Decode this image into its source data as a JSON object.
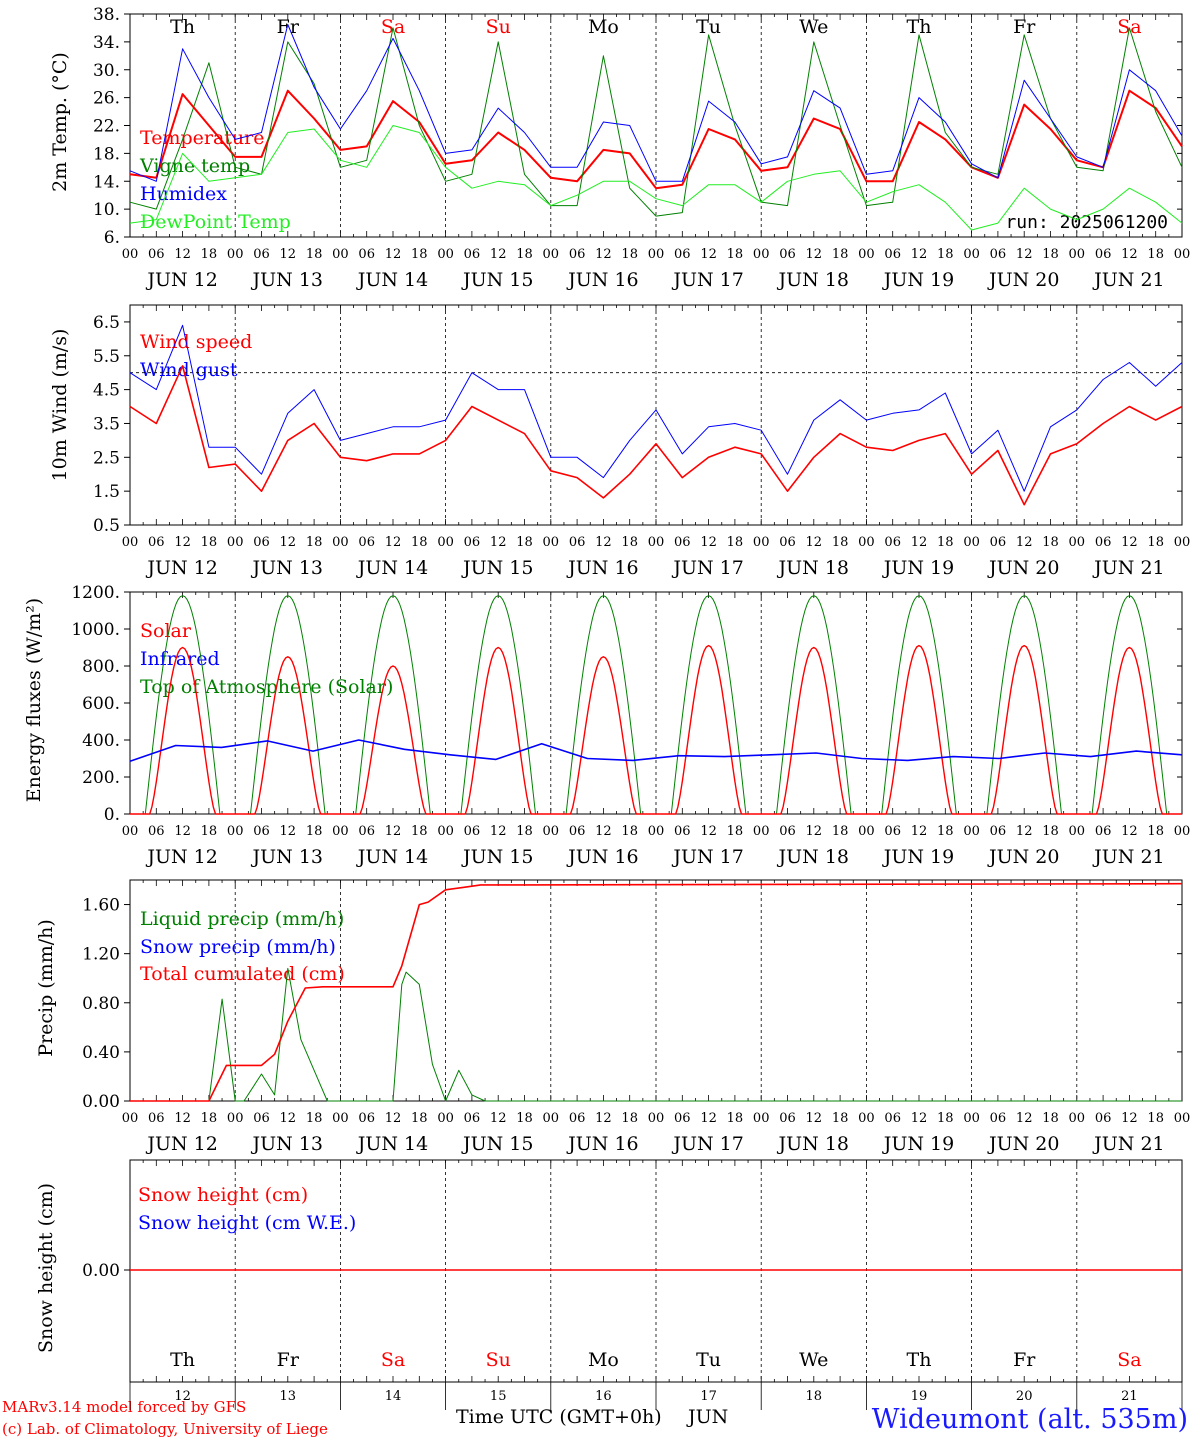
{
  "meta": {
    "model": "MARv3.14 model forced by GFS",
    "copyright": "(c) Lab. of Climatology, University of Liege",
    "xlabel": "Time UTC (GMT+0h)",
    "month": "JUN",
    "station": "Wideumont (alt. 535m)",
    "run": "run: 2025061200"
  },
  "days": [
    {
      "date": "JUN 12",
      "num": "12",
      "dow": "Th",
      "weekend": false
    },
    {
      "date": "JUN 13",
      "num": "13",
      "dow": "Fr",
      "weekend": false
    },
    {
      "date": "JUN 14",
      "num": "14",
      "dow": "Sa",
      "weekend": true
    },
    {
      "date": "JUN 15",
      "num": "15",
      "dow": "Su",
      "weekend": true
    },
    {
      "date": "JUN 16",
      "num": "16",
      "dow": "Mo",
      "weekend": false
    },
    {
      "date": "JUN 17",
      "num": "17",
      "dow": "Tu",
      "weekend": false
    },
    {
      "date": "JUN 18",
      "num": "18",
      "dow": "We",
      "weekend": false
    },
    {
      "date": "JUN 19",
      "num": "19",
      "dow": "Th",
      "weekend": false
    },
    {
      "date": "JUN 20",
      "num": "20",
      "dow": "Fr",
      "weekend": false
    },
    {
      "date": "JUN 21",
      "num": "21",
      "dow": "Sa",
      "weekend": true
    }
  ],
  "hour_ticks": [
    "00",
    "06",
    "12",
    "18"
  ],
  "colors": {
    "red": "#ff0000",
    "green": "#008000",
    "blue": "#0000ff",
    "lightgreen": "#22ee22",
    "weekend": "#ff0000",
    "axis": "#000000"
  },
  "chart_data": [
    {
      "id": "temp",
      "type": "line",
      "ylabel": "2m Temp. (°C)",
      "ylim": [
        6,
        38
      ],
      "yticks": [
        "38.",
        "34.",
        "30.",
        "26.",
        "22.",
        "18.",
        "14.",
        "10.",
        "6."
      ],
      "ytick_values": [
        38,
        34,
        30,
        26,
        22,
        18,
        14,
        10,
        6
      ],
      "x_unit": "hours since JUN 12 00 UTC",
      "x": [
        0,
        6,
        12,
        18,
        24,
        30,
        36,
        42,
        48,
        54,
        60,
        66,
        72,
        78,
        84,
        90,
        96,
        102,
        108,
        114,
        120,
        126,
        132,
        138,
        144,
        150,
        156,
        162,
        168,
        174,
        180,
        186,
        192,
        198,
        204,
        210,
        216,
        222,
        228,
        234,
        240
      ],
      "series": [
        {
          "name": "Temperature",
          "color": "#ff0000",
          "values": [
            15.0,
            14.5,
            26.5,
            22.0,
            17.5,
            17.5,
            27.0,
            23.0,
            18.5,
            19.0,
            25.5,
            22.5,
            16.5,
            17.0,
            21.0,
            18.5,
            14.5,
            14.0,
            18.5,
            18.0,
            13.0,
            13.5,
            21.5,
            20.0,
            15.5,
            16.0,
            23.0,
            21.5,
            14.0,
            14.0,
            22.5,
            20.0,
            16.0,
            14.5,
            25.0,
            21.5,
            17.0,
            16.0,
            27.0,
            24.5,
            19.0
          ]
        },
        {
          "name": "Vigne temp",
          "color": "#008000",
          "values": [
            11.0,
            10.0,
            20.0,
            31.0,
            16.0,
            15.0,
            34.0,
            28.0,
            16.0,
            17.0,
            36.0,
            22.0,
            14.0,
            15.0,
            34.0,
            15.0,
            10.5,
            10.5,
            32.0,
            13.0,
            9.0,
            9.5,
            35.0,
            22.0,
            11.0,
            10.5,
            34.0,
            22.0,
            10.5,
            11.0,
            35.0,
            21.0,
            16.0,
            15.0,
            35.0,
            23.0,
            16.0,
            15.5,
            36.0,
            24.0,
            16.0
          ]
        },
        {
          "name": "Humidex",
          "color": "#0000ff",
          "values": [
            15.5,
            14.0,
            33.0,
            26.0,
            20.0,
            21.0,
            36.5,
            27.5,
            21.5,
            27.0,
            34.5,
            27.0,
            18.0,
            18.5,
            24.5,
            21.0,
            16.0,
            16.0,
            22.5,
            22.0,
            14.0,
            14.0,
            25.5,
            22.5,
            16.5,
            17.5,
            27.0,
            24.5,
            15.0,
            15.5,
            26.0,
            22.5,
            16.5,
            14.5,
            28.5,
            23.0,
            17.5,
            16.0,
            30.0,
            27.0,
            20.5
          ]
        },
        {
          "name": "DewPoint Temp",
          "color": "#22ee22",
          "values": [
            8.0,
            8.5,
            18.0,
            14.0,
            14.5,
            15.0,
            21.0,
            21.5,
            17.0,
            16.0,
            22.0,
            21.0,
            16.0,
            13.0,
            14.0,
            13.5,
            10.5,
            12.0,
            14.0,
            14.0,
            11.5,
            10.5,
            13.5,
            13.5,
            11.0,
            14.0,
            15.0,
            15.5,
            11.0,
            12.5,
            13.5,
            11.0,
            7.0,
            8.0,
            13.0,
            10.0,
            8.5,
            10.0,
            13.0,
            11.0,
            8.0
          ]
        }
      ]
    },
    {
      "id": "wind",
      "type": "line",
      "ylabel": "10m Wind (m/s)",
      "ylim": [
        0.5,
        7.0
      ],
      "yticks": [
        "6.5",
        "5.5",
        "4.5",
        "3.5",
        "2.5",
        "1.5",
        "0.5"
      ],
      "ytick_values": [
        6.5,
        5.5,
        4.5,
        3.5,
        2.5,
        1.5,
        0.5
      ],
      "threshold": 5.0,
      "x_unit": "hours since JUN 12 00 UTC",
      "x": [
        0,
        6,
        12,
        18,
        24,
        30,
        36,
        42,
        48,
        54,
        60,
        66,
        72,
        78,
        84,
        90,
        96,
        102,
        108,
        114,
        120,
        126,
        132,
        138,
        144,
        150,
        156,
        162,
        168,
        174,
        180,
        186,
        192,
        198,
        204,
        210,
        216,
        222,
        228,
        234,
        240
      ],
      "series": [
        {
          "name": "Wind speed",
          "color": "#ff0000",
          "values": [
            4.0,
            3.5,
            5.2,
            2.2,
            2.3,
            1.5,
            3.0,
            3.5,
            2.5,
            2.4,
            2.6,
            2.6,
            3.0,
            4.0,
            3.6,
            3.2,
            2.1,
            1.9,
            1.3,
            2.0,
            2.9,
            1.9,
            2.5,
            2.8,
            2.6,
            1.5,
            2.5,
            3.2,
            2.8,
            2.7,
            3.0,
            3.2,
            2.0,
            2.7,
            1.1,
            2.6,
            2.9,
            3.5,
            4.0,
            3.6,
            4.0
          ]
        },
        {
          "name": "Wind gust",
          "color": "#0000ff",
          "values": [
            5.0,
            4.5,
            6.4,
            2.8,
            2.8,
            2.0,
            3.8,
            4.5,
            3.0,
            3.2,
            3.4,
            3.4,
            3.6,
            5.0,
            4.5,
            4.5,
            2.5,
            2.5,
            1.9,
            3.0,
            3.9,
            2.6,
            3.4,
            3.5,
            3.3,
            2.0,
            3.6,
            4.2,
            3.6,
            3.8,
            3.9,
            4.4,
            2.6,
            3.3,
            1.5,
            3.4,
            3.9,
            4.8,
            5.3,
            4.6,
            5.3
          ]
        }
      ]
    },
    {
      "id": "flux",
      "type": "line",
      "ylabel": "Energy fluxes (W/m²)",
      "ylim": [
        0,
        1200
      ],
      "yticks": [
        "1200.",
        "1000.",
        "800.",
        "600.",
        "400.",
        "200.",
        "0."
      ],
      "ytick_values": [
        1200,
        1000,
        800,
        600,
        400,
        200,
        0
      ],
      "daily_peaks_solar": [
        900,
        850,
        800,
        900,
        850,
        910,
        900,
        910,
        910,
        900
      ],
      "toa_peak": 1180,
      "infrared_values": [
        285,
        370,
        360,
        395,
        340,
        400,
        350,
        320,
        295,
        380,
        300,
        290,
        315,
        310,
        320,
        330,
        300,
        290,
        310,
        300,
        330,
        310,
        340,
        320
      ],
      "series": [
        {
          "name": "Solar",
          "color": "#ff0000"
        },
        {
          "name": "Infrared",
          "color": "#0000ff"
        },
        {
          "name": "Top of Atmosphere (Solar)",
          "color": "#008000"
        }
      ]
    },
    {
      "id": "precip",
      "type": "line",
      "ylabel": "Precip (mm/h)",
      "ylim": [
        0,
        1.8
      ],
      "yticks": [
        "1.60",
        "1.20",
        "0.80",
        "0.40",
        "0.00"
      ],
      "ytick_values": [
        1.6,
        1.2,
        0.8,
        0.4,
        0.0
      ],
      "x_unit": "hours since JUN 12 00 UTC",
      "liquid_x": [
        0,
        18,
        21,
        24,
        26,
        30,
        33,
        36,
        39,
        42,
        45,
        48,
        51,
        60,
        62,
        63,
        66,
        69,
        72,
        75,
        78,
        81,
        84,
        90,
        240
      ],
      "liquid_values": [
        0,
        0,
        0.83,
        0,
        0,
        0.22,
        0.05,
        1.08,
        0.5,
        0.25,
        0,
        0,
        0,
        0,
        0.95,
        1.05,
        0.95,
        0.3,
        0,
        0.25,
        0.05,
        0,
        0,
        0,
        0
      ],
      "total_x": [
        0,
        18,
        22,
        24,
        30,
        33,
        36,
        40,
        44,
        60,
        62,
        66,
        68,
        72,
        76,
        80,
        90,
        240
      ],
      "total_values": [
        0,
        0,
        0.29,
        0.29,
        0.29,
        0.38,
        0.65,
        0.92,
        0.93,
        0.93,
        1.1,
        1.6,
        1.62,
        1.72,
        1.74,
        1.76,
        1.76,
        1.77
      ],
      "series": [
        {
          "name": "Liquid precip (mm/h)",
          "color": "#008000"
        },
        {
          "name": "Snow precip (mm/h)",
          "color": "#0000ff"
        },
        {
          "name": "Total cumulated (cm)",
          "color": "#ff0000"
        }
      ]
    },
    {
      "id": "snow",
      "type": "line",
      "ylabel": "Snow height (cm)",
      "yticks": [
        "0.00"
      ],
      "ytick_values": [
        0
      ],
      "values_constant": 0.0,
      "series": [
        {
          "name": "Snow height (cm)",
          "color": "#ff0000"
        },
        {
          "name": "Snow height (cm W.E.)",
          "color": "#0000ff"
        }
      ]
    }
  ]
}
